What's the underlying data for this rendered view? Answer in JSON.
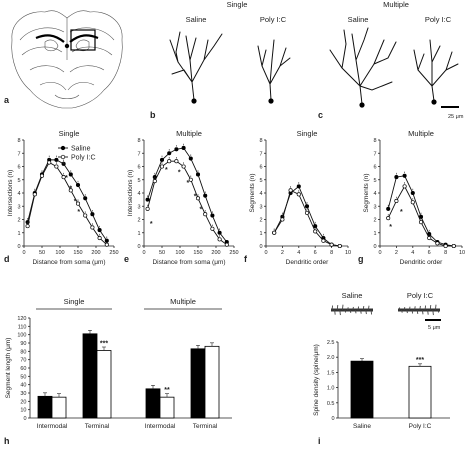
{
  "panels": {
    "a": "a",
    "b": "b",
    "c": "c",
    "d": "d",
    "e": "e",
    "f": "f",
    "g": "g",
    "h": "h",
    "i": "i"
  },
  "neurons": {
    "group_single": "Single",
    "group_multiple": "Multiple",
    "saline": "Saline",
    "polyic": "Poly I:C",
    "scale_bar": "25 μm"
  },
  "spines": {
    "saline": "Saline",
    "polyic": "Poly I:C",
    "scale_bar": "5 μm"
  },
  "chart_data": [
    {
      "id": "d",
      "type": "line",
      "title": "Single",
      "xlabel": "Distance from soma (μm)",
      "ylabel": "Intersections (n)",
      "xlim": [
        0,
        250
      ],
      "ylim": [
        0,
        8
      ],
      "xticks": [
        0,
        50,
        100,
        150,
        200,
        250
      ],
      "yticks": [
        0,
        1,
        2,
        3,
        4,
        5,
        6,
        7,
        8
      ],
      "legend": [
        "Saline",
        "Poly I:C"
      ],
      "series": [
        {
          "name": "Saline",
          "marker": "filled",
          "x": [
            10,
            30,
            50,
            70,
            90,
            110,
            130,
            150,
            170,
            190,
            210,
            230
          ],
          "y": [
            1.8,
            4.0,
            5.4,
            6.5,
            6.5,
            6.2,
            5.4,
            4.6,
            3.6,
            2.4,
            1.2,
            0.4
          ]
        },
        {
          "name": "Poly I:C",
          "marker": "open",
          "x": [
            10,
            30,
            50,
            70,
            90,
            110,
            130,
            150,
            170,
            190,
            210,
            230
          ],
          "y": [
            1.5,
            3.9,
            5.3,
            6.3,
            6.0,
            5.2,
            4.2,
            3.2,
            2.3,
            1.4,
            0.6,
            0.1
          ]
        }
      ],
      "annotations": [
        "*",
        "*",
        "*",
        "*",
        "*"
      ]
    },
    {
      "id": "e",
      "type": "line",
      "title": "Multiple",
      "xlabel": "Distance from soma (μm)",
      "ylabel": "Intersections (n)",
      "xlim": [
        0,
        250
      ],
      "ylim": [
        0,
        8
      ],
      "xticks": [
        0,
        50,
        100,
        150,
        200,
        250
      ],
      "yticks": [
        0,
        1,
        2,
        3,
        4,
        5,
        6,
        7,
        8
      ],
      "series": [
        {
          "name": "Saline",
          "marker": "filled",
          "x": [
            10,
            30,
            50,
            70,
            90,
            110,
            130,
            150,
            170,
            190,
            210,
            230
          ],
          "y": [
            3.5,
            5.2,
            6.5,
            7.0,
            7.3,
            7.4,
            6.6,
            5.4,
            3.8,
            2.3,
            1.0,
            0.3
          ]
        },
        {
          "name": "Poly I:C",
          "marker": "open",
          "x": [
            10,
            30,
            50,
            70,
            90,
            110,
            130,
            150,
            170,
            190,
            210,
            230
          ],
          "y": [
            2.8,
            4.9,
            6.0,
            6.4,
            6.4,
            6.0,
            5.0,
            3.6,
            2.4,
            1.3,
            0.5,
            0.1
          ]
        }
      ],
      "annotations": [
        "*",
        "*",
        "*",
        "*",
        "*",
        "*"
      ]
    },
    {
      "id": "f",
      "type": "line",
      "title": "Single",
      "xlabel": "Dendritic order",
      "ylabel": "Segments (n)",
      "xlim": [
        0,
        10
      ],
      "ylim": [
        0,
        8
      ],
      "xticks": [
        0,
        2,
        4,
        6,
        8,
        10
      ],
      "yticks": [
        0,
        1,
        2,
        3,
        4,
        5,
        6,
        7,
        8
      ],
      "series": [
        {
          "name": "Saline",
          "marker": "filled",
          "x": [
            1,
            2,
            3,
            4,
            5,
            6,
            7,
            8,
            9
          ],
          "y": [
            1.0,
            2.2,
            4.0,
            4.5,
            3.0,
            1.5,
            0.6,
            0.1,
            0.0
          ]
        },
        {
          "name": "Poly I:C",
          "marker": "open",
          "x": [
            1,
            2,
            3,
            4,
            5,
            6,
            7,
            8,
            9
          ],
          "y": [
            1.0,
            2.0,
            4.2,
            3.9,
            2.5,
            1.1,
            0.4,
            0.1,
            0.0
          ]
        }
      ]
    },
    {
      "id": "g",
      "type": "line",
      "title": "Multiple",
      "xlabel": "Dendritic order",
      "ylabel": "Segments (n)",
      "xlim": [
        0,
        10
      ],
      "ylim": [
        0,
        8
      ],
      "xticks": [
        0,
        2,
        4,
        6,
        8,
        10
      ],
      "yticks": [
        0,
        1,
        2,
        3,
        4,
        5,
        6,
        7,
        8
      ],
      "series": [
        {
          "name": "Saline",
          "marker": "filled",
          "x": [
            1,
            2,
            3,
            4,
            5,
            6,
            7,
            8,
            9
          ],
          "y": [
            2.8,
            5.2,
            5.3,
            4.0,
            2.2,
            0.9,
            0.3,
            0.1,
            0.0
          ]
        },
        {
          "name": "Poly I:C",
          "marker": "open",
          "x": [
            1,
            2,
            3,
            4,
            5,
            6,
            7,
            8,
            9
          ],
          "y": [
            2.1,
            3.4,
            4.5,
            3.3,
            1.8,
            0.6,
            0.2,
            0.0,
            0.0
          ]
        }
      ],
      "annotations": [
        "*",
        "*"
      ]
    },
    {
      "id": "h",
      "type": "bar",
      "group_labels": [
        "Single",
        "Multiple"
      ],
      "categories": [
        "Intermodal",
        "Terminal",
        "Intermodal",
        "Terminal"
      ],
      "ylabel": "Segment length (μm)",
      "ylim": [
        0,
        120
      ],
      "yticks": [
        0,
        10,
        20,
        30,
        40,
        50,
        60,
        70,
        80,
        90,
        100,
        110,
        120
      ],
      "series": [
        {
          "name": "Saline",
          "color": "#000000",
          "values": [
            26,
            101,
            35,
            83
          ]
        },
        {
          "name": "Poly I:C",
          "color": "#ffffff",
          "values": [
            25,
            81,
            25,
            86
          ]
        }
      ],
      "annotations": [
        "",
        "***",
        "**",
        ""
      ]
    },
    {
      "id": "i",
      "type": "bar",
      "categories": [
        "Saline",
        "Poly I:C"
      ],
      "ylabel": "Spine density (spine/μm)",
      "ylim": [
        0,
        2.5
      ],
      "yticks": [
        "0",
        "0.5",
        "1.0",
        "1.5",
        "2.0",
        "2.5"
      ],
      "series": [
        {
          "name": "Spine density",
          "colors": [
            "#000000",
            "#ffffff"
          ],
          "values": [
            1.87,
            1.7
          ]
        }
      ],
      "annotations": [
        "",
        "***"
      ]
    }
  ]
}
